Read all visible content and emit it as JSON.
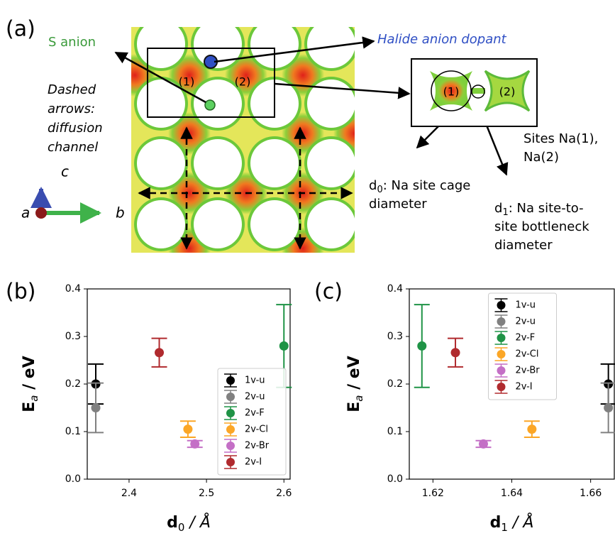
{
  "panel_a": {
    "panel_label": "(a)",
    "s_anion": "S anion",
    "halide": "Halide anion dopant",
    "diffusion": [
      "Dashed",
      "arrows:",
      "diffusion",
      "channel"
    ],
    "site_labels": [
      "(1)",
      "(2)"
    ],
    "sites": [
      "Sites Na(1),",
      "Na(2)"
    ],
    "d0": {
      "symbol": "d",
      "sub": "0",
      "lines": [
        ": Na site cage",
        "diameter"
      ]
    },
    "d1": {
      "symbol": "d",
      "sub": "1",
      "lines": [
        ": Na site-to-",
        "site bottleneck",
        "diameter"
      ]
    },
    "axes": {
      "c": "c",
      "a": "a",
      "b": "b"
    }
  },
  "chart_data": [
    {
      "type": "scatter",
      "panel_label": "(b)",
      "xlabel": {
        "text": "d",
        "sub": "0",
        "unit": " / Å"
      },
      "ylabel": {
        "text": "E",
        "sub": "a",
        "unit": " / eV"
      },
      "xlim": [
        2.346,
        2.608
      ],
      "xticks": [
        2.4,
        2.5,
        2.6
      ],
      "ylim": [
        0,
        0.4
      ],
      "yticks": [
        {
          "value": 0,
          "label": "0.0"
        },
        0.1,
        0.2,
        0.3,
        0.4
      ],
      "legend": "lower right",
      "series": [
        {
          "name": "1v-u",
          "color": "#000000",
          "x": [
            2.357
          ],
          "values": [
            0.2
          ],
          "errors": [
            0.042
          ]
        },
        {
          "name": "2v-u",
          "color": "#808080",
          "x": [
            2.357
          ],
          "values": [
            0.15
          ],
          "errors": [
            0.052
          ]
        },
        {
          "name": "2v-F",
          "color": "#1f9346",
          "x": [
            2.6
          ],
          "values": [
            0.28
          ],
          "errors": [
            0.087
          ]
        },
        {
          "name": "2v-Cl",
          "color": "#fba626",
          "x": [
            2.476
          ],
          "values": [
            0.105
          ],
          "errors": [
            0.017
          ]
        },
        {
          "name": "2v-Br",
          "color": "#c46fc6",
          "x": [
            2.485
          ],
          "values": [
            0.074
          ],
          "errors": [
            0.007
          ]
        },
        {
          "name": "2v-I",
          "color": "#b02a2e",
          "x": [
            2.439
          ],
          "values": [
            0.266
          ],
          "errors": [
            0.03
          ]
        }
      ]
    },
    {
      "type": "scatter",
      "panel_label": "(c)",
      "xlabel": {
        "text": "d",
        "sub": "1",
        "unit": " / Å"
      },
      "ylabel": {
        "text": "E",
        "sub": "a",
        "unit": " / eV"
      },
      "xlim": [
        1.614,
        1.666
      ],
      "xticks": [
        1.62,
        1.64,
        1.66
      ],
      "ylim": [
        0,
        0.4
      ],
      "yticks": [
        {
          "value": 0,
          "label": "0.0"
        },
        0.1,
        0.2,
        0.3,
        0.4
      ],
      "legend": "upper center",
      "series": [
        {
          "name": "1v-u",
          "color": "#000000",
          "x": [
            1.6645
          ],
          "values": [
            0.2
          ],
          "errors": [
            0.042
          ]
        },
        {
          "name": "2v-u",
          "color": "#808080",
          "x": [
            1.6645
          ],
          "values": [
            0.15
          ],
          "errors": [
            0.052
          ]
        },
        {
          "name": "2v-F",
          "color": "#1f9346",
          "x": [
            1.6172
          ],
          "values": [
            0.28
          ],
          "errors": [
            0.087
          ]
        },
        {
          "name": "2v-Cl",
          "color": "#fba626",
          "x": [
            1.6451
          ],
          "values": [
            0.105
          ],
          "errors": [
            0.017
          ]
        },
        {
          "name": "2v-Br",
          "color": "#c46fc6",
          "x": [
            1.6328
          ],
          "values": [
            0.074
          ],
          "errors": [
            0.007
          ]
        },
        {
          "name": "2v-I",
          "color": "#b02a2e",
          "x": [
            1.6257
          ],
          "values": [
            0.266
          ],
          "errors": [
            0.03
          ]
        }
      ]
    }
  ]
}
